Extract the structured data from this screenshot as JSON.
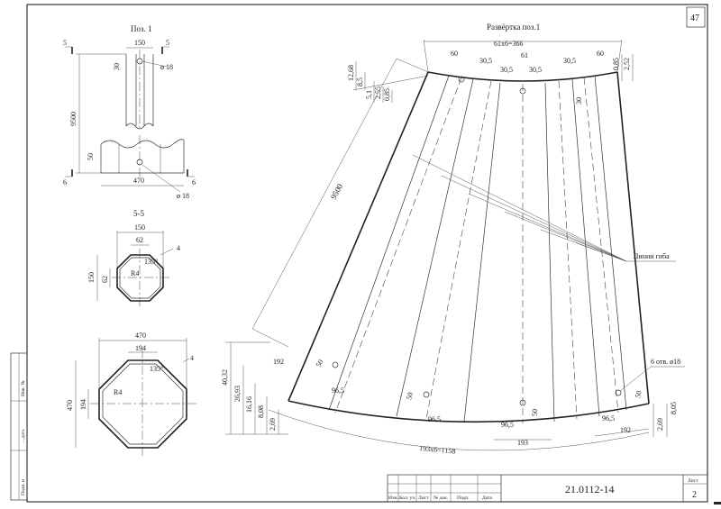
{
  "sheet": {
    "page_number": "47",
    "code": "21.0112-14",
    "sheet_label": "Лист",
    "sheet_number": "2"
  },
  "title_block": {
    "columns": [
      "Изм.",
      "Кол. уч.",
      "Лист",
      "№ док.",
      "Подп.",
      "Дата"
    ]
  },
  "side_stamp": {
    "labels": [
      "Инв. №",
      "…дата",
      "Подп. и"
    ]
  },
  "pos1": {
    "title": "Поз. 1",
    "dim_width": "150",
    "dim_height": "9500",
    "dim_30": "30",
    "dim_50": "50",
    "hole_top": "ø 18",
    "hole_bottom": "ø 18",
    "dim_470": "470",
    "section_5": "5",
    "section_6": "6"
  },
  "section_55": {
    "title": "5-5",
    "dim_150_top": "150",
    "dim_62_top": "62",
    "dim_150_left": "150",
    "dim_62_left": "62",
    "chamfer": "135°",
    "radius": "R4",
    "thickness": "4"
  },
  "section_66": {
    "dim_470_top": "470",
    "dim_194_top": "194",
    "dim_470_left": "470",
    "dim_194_left": "194",
    "chamfer": "135°",
    "radius": "R4",
    "thickness": "4"
  },
  "development": {
    "title": "Развёртка поз.1",
    "top_total": "61x6=366",
    "top_60_left": "60",
    "top_60_right": "60",
    "top_30_5": [
      "30,5",
      "30,5",
      "30,5",
      "30,5"
    ],
    "top_61": "61",
    "left_dims": [
      "12,68",
      "8,5",
      "5,1",
      "2,55",
      "0,85"
    ],
    "right_dims": [
      "0,85",
      "2,52"
    ],
    "right_30": "30",
    "length": "9500",
    "bend_lines": "Линии гиба",
    "holes": "6 отв. ø18",
    "bottom_total": "193x6=1158",
    "bottom_192_left": "192",
    "bottom_192_right": "192",
    "bottom_193": "193",
    "bottom_96_5": [
      "96,5",
      "96,5",
      "96,5",
      "96,5"
    ],
    "bottom_50": [
      "50",
      "50",
      "50",
      "50"
    ],
    "left_bottom_dims": [
      "40,32",
      "26,93",
      "16,16",
      "8,08",
      "2,69"
    ],
    "right_bottom_dims": [
      "8,05",
      "2,69"
    ]
  }
}
